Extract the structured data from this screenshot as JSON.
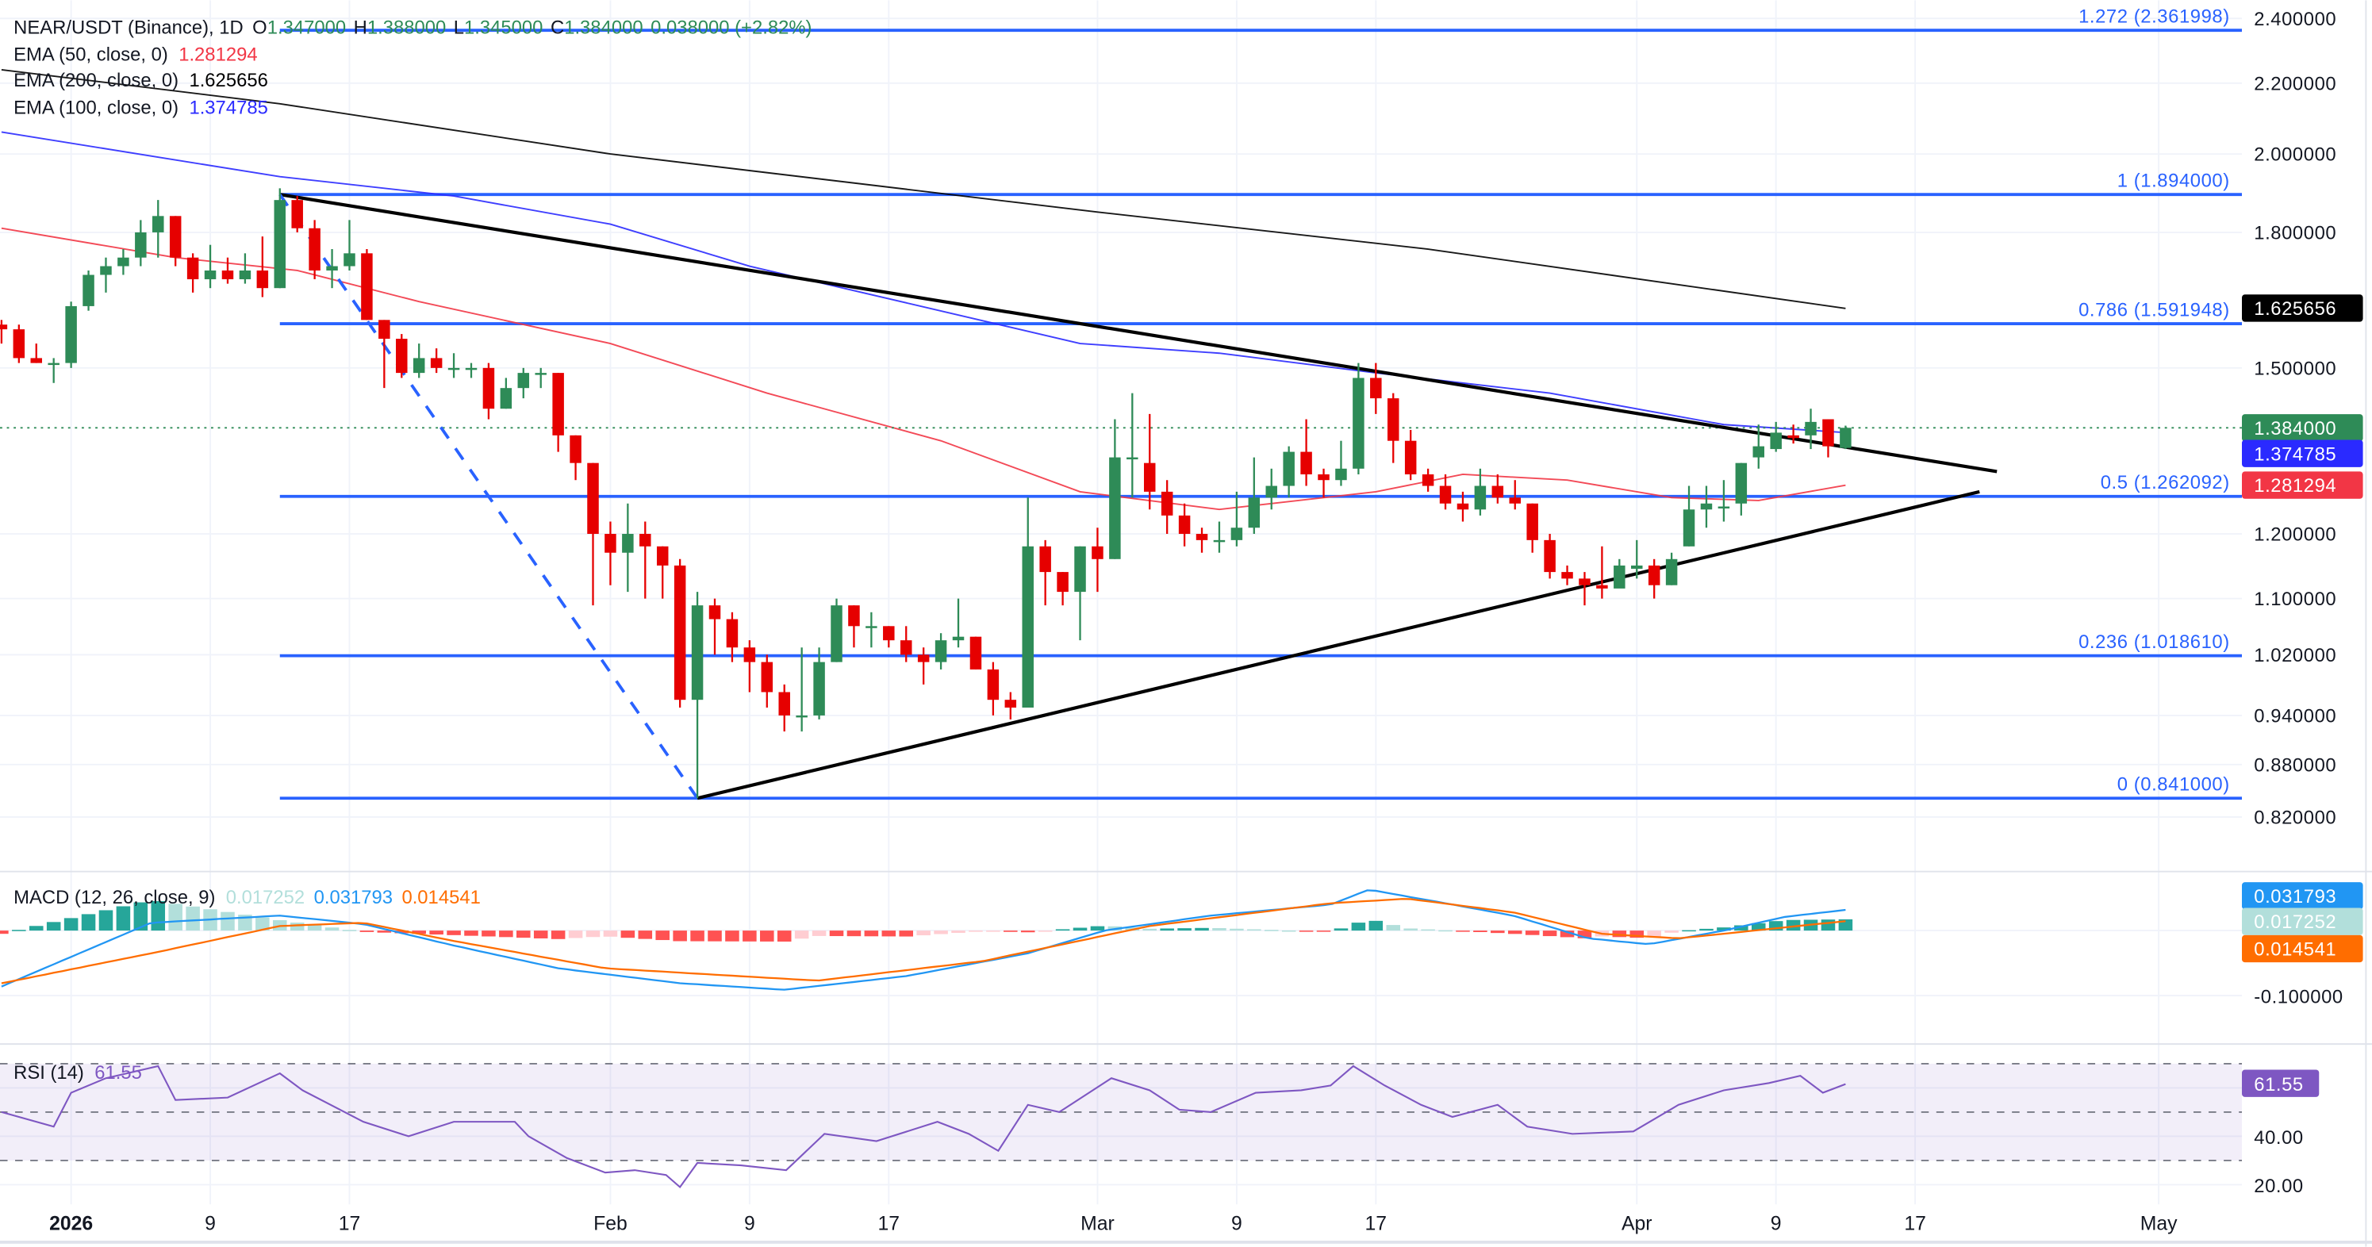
{
  "header": {
    "symbol": "NEAR/USDT (Binance), 1D",
    "o_label": "O",
    "o_value": "1.347000",
    "h_label": "H",
    "h_value": "1.388000",
    "l_label": "L",
    "l_value": "1.345000",
    "c_label": "C",
    "c_value": "1.384000",
    "change": "0.038000 (+2.82%)",
    "ema50_label": "EMA (50, close, 0)",
    "ema50_value": "1.281294",
    "ema200_label": "EMA (200, close, 0)",
    "ema200_value": "1.625656",
    "ema100_label": "EMA (100, close, 0)",
    "ema100_value": "1.374785"
  },
  "colors": {
    "up": "#2e8b57",
    "down": "#e60000",
    "fib": "#2962ff",
    "ema50": "#f23645",
    "ema100": "#2a2aff",
    "ema200": "#000000",
    "macd": "#2196f3",
    "signal": "#ff6d00",
    "rsi": "#7e57c2",
    "hist_up_strong": "#26a69a",
    "hist_up_weak": "#b2dfdb",
    "hist_down_strong": "#ff5252",
    "hist_down_weak": "#ffcdd2"
  },
  "price_axis": {
    "ticks": [
      "2.400000",
      "2.200000",
      "2.000000",
      "1.800000",
      "1.500000",
      "1.200000",
      "1.100000",
      "1.020000",
      "0.940000",
      "0.880000",
      "0.820000"
    ],
    "badges": [
      {
        "value": "1.625656",
        "color": "#000000",
        "text_color": "#ffffff"
      },
      {
        "value": "1.384000",
        "color": "#2e8b57",
        "text_color": "#ffffff"
      },
      {
        "value": "1.374785",
        "color": "#2a2aff",
        "text_color": "#ffffff"
      },
      {
        "value": "1.281294",
        "color": "#f23645",
        "text_color": "#ffffff"
      }
    ]
  },
  "fib_levels": [
    {
      "label": "1.272 (2.361998)",
      "price": 2.361998
    },
    {
      "label": "1 (1.894000)",
      "price": 1.894
    },
    {
      "label": "0.786 (1.591948)",
      "price": 1.591948
    },
    {
      "label": "0.5 (1.262092)",
      "price": 1.262092
    },
    {
      "label": "0.236 (1.018610)",
      "price": 1.01861
    },
    {
      "label": "0 (0.841000)",
      "price": 0.841
    }
  ],
  "macd": {
    "label": "MACD (12, 26, close, 9)",
    "hist_value": "0.017252",
    "macd_value": "0.031793",
    "signal_value": "0.014541",
    "axis_tick": "-0.100000",
    "badges": [
      {
        "value": "0.031793",
        "color": "#2196f3",
        "text_color": "#ffffff"
      },
      {
        "value": "0.017252",
        "color": "#b2dfdb",
        "text_color": "#000000"
      },
      {
        "value": "0.014541",
        "color": "#ff6d00",
        "text_color": "#ffffff"
      }
    ]
  },
  "rsi": {
    "label": "RSI (14)",
    "value": "61.55",
    "ticks": [
      "40.00",
      "20.00"
    ]
  },
  "x_axis": {
    "ticks": [
      {
        "label": "2026",
        "day": 0,
        "bold": true
      },
      {
        "label": "9",
        "day": 8
      },
      {
        "label": "17",
        "day": 16
      },
      {
        "label": "Feb",
        "day": 31
      },
      {
        "label": "9",
        "day": 39
      },
      {
        "label": "17",
        "day": 47
      },
      {
        "label": "Mar",
        "day": 59
      },
      {
        "label": "9",
        "day": 67
      },
      {
        "label": "17",
        "day": 75
      },
      {
        "label": "Apr",
        "day": 90
      },
      {
        "label": "9",
        "day": 98
      },
      {
        "label": "17",
        "day": 106
      },
      {
        "label": "May",
        "day": 120
      }
    ]
  },
  "chart_data": {
    "type": "candlestick",
    "title": "NEAR/USDT (Binance), 1D",
    "scale": "log",
    "ylim": [
      0.8,
      2.42
    ],
    "x_unit": "days since 2026-01-01",
    "start_day": -4,
    "ohlc": [
      [
        1.59,
        1.6,
        1.55,
        1.58
      ],
      [
        1.58,
        1.59,
        1.51,
        1.52
      ],
      [
        1.52,
        1.55,
        1.51,
        1.51
      ],
      [
        1.51,
        1.52,
        1.47,
        1.51
      ],
      [
        1.51,
        1.64,
        1.5,
        1.63
      ],
      [
        1.63,
        1.71,
        1.62,
        1.7
      ],
      [
        1.7,
        1.74,
        1.66,
        1.72
      ],
      [
        1.72,
        1.76,
        1.7,
        1.74
      ],
      [
        1.74,
        1.83,
        1.72,
        1.8
      ],
      [
        1.8,
        1.88,
        1.74,
        1.84
      ],
      [
        1.84,
        1.84,
        1.72,
        1.74
      ],
      [
        1.74,
        1.75,
        1.66,
        1.69
      ],
      [
        1.69,
        1.77,
        1.67,
        1.71
      ],
      [
        1.71,
        1.74,
        1.68,
        1.69
      ],
      [
        1.69,
        1.75,
        1.68,
        1.71
      ],
      [
        1.71,
        1.79,
        1.65,
        1.67
      ],
      [
        1.67,
        1.91,
        1.67,
        1.88
      ],
      [
        1.88,
        1.89,
        1.8,
        1.81
      ],
      [
        1.81,
        1.83,
        1.69,
        1.71
      ],
      [
        1.71,
        1.76,
        1.67,
        1.72
      ],
      [
        1.72,
        1.83,
        1.71,
        1.75
      ],
      [
        1.75,
        1.76,
        1.6,
        1.6
      ],
      [
        1.6,
        1.6,
        1.46,
        1.56
      ],
      [
        1.56,
        1.57,
        1.48,
        1.49
      ],
      [
        1.49,
        1.55,
        1.48,
        1.52
      ],
      [
        1.52,
        1.54,
        1.49,
        1.5
      ],
      [
        1.5,
        1.53,
        1.48,
        1.5
      ],
      [
        1.5,
        1.51,
        1.48,
        1.5
      ],
      [
        1.5,
        1.51,
        1.4,
        1.42
      ],
      [
        1.42,
        1.48,
        1.42,
        1.46
      ],
      [
        1.46,
        1.5,
        1.44,
        1.49
      ],
      [
        1.49,
        1.5,
        1.46,
        1.49
      ],
      [
        1.49,
        1.49,
        1.34,
        1.37
      ],
      [
        1.37,
        1.37,
        1.29,
        1.32
      ],
      [
        1.32,
        1.32,
        1.09,
        1.2
      ],
      [
        1.2,
        1.22,
        1.12,
        1.17
      ],
      [
        1.17,
        1.25,
        1.11,
        1.2
      ],
      [
        1.2,
        1.22,
        1.1,
        1.18
      ],
      [
        1.18,
        1.18,
        1.1,
        1.15
      ],
      [
        1.15,
        1.16,
        0.95,
        0.96
      ],
      [
        0.96,
        1.11,
        0.841,
        1.09
      ],
      [
        1.09,
        1.1,
        1.02,
        1.07
      ],
      [
        1.07,
        1.08,
        1.01,
        1.03
      ],
      [
        1.03,
        1.04,
        0.97,
        1.01
      ],
      [
        1.01,
        1.02,
        0.95,
        0.97
      ],
      [
        0.97,
        0.98,
        0.92,
        0.94
      ],
      [
        0.94,
        1.03,
        0.92,
        0.94
      ],
      [
        0.94,
        1.03,
        0.935,
        1.01
      ],
      [
        1.01,
        1.1,
        1.01,
        1.09
      ],
      [
        1.09,
        1.09,
        1.03,
        1.06
      ],
      [
        1.06,
        1.08,
        1.03,
        1.06
      ],
      [
        1.06,
        1.06,
        1.03,
        1.04
      ],
      [
        1.04,
        1.06,
        1.01,
        1.02
      ],
      [
        1.02,
        1.03,
        0.98,
        1.01
      ],
      [
        1.01,
        1.05,
        1.0,
        1.04
      ],
      [
        1.04,
        1.1,
        1.03,
        1.045
      ],
      [
        1.045,
        1.045,
        1.0,
        1.0
      ],
      [
        1.0,
        1.01,
        0.94,
        0.96
      ],
      [
        0.96,
        0.97,
        0.935,
        0.95
      ],
      [
        0.95,
        1.26,
        0.95,
        1.18
      ],
      [
        1.18,
        1.19,
        1.09,
        1.14
      ],
      [
        1.14,
        1.14,
        1.09,
        1.11
      ],
      [
        1.11,
        1.18,
        1.04,
        1.18
      ],
      [
        1.18,
        1.21,
        1.11,
        1.16
      ],
      [
        1.16,
        1.4,
        1.16,
        1.33
      ],
      [
        1.33,
        1.45,
        1.26,
        1.33
      ],
      [
        1.32,
        1.41,
        1.24,
        1.27
      ],
      [
        1.27,
        1.29,
        1.2,
        1.23
      ],
      [
        1.23,
        1.25,
        1.18,
        1.2
      ],
      [
        1.2,
        1.21,
        1.17,
        1.19
      ],
      [
        1.19,
        1.22,
        1.17,
        1.19
      ],
      [
        1.19,
        1.27,
        1.18,
        1.21
      ],
      [
        1.21,
        1.33,
        1.2,
        1.26
      ],
      [
        1.26,
        1.31,
        1.24,
        1.28
      ],
      [
        1.28,
        1.35,
        1.26,
        1.34
      ],
      [
        1.34,
        1.4,
        1.28,
        1.3
      ],
      [
        1.3,
        1.31,
        1.26,
        1.29
      ],
      [
        1.29,
        1.36,
        1.28,
        1.31
      ],
      [
        1.31,
        1.51,
        1.3,
        1.48
      ],
      [
        1.48,
        1.51,
        1.41,
        1.44
      ],
      [
        1.44,
        1.45,
        1.32,
        1.36
      ],
      [
        1.36,
        1.38,
        1.29,
        1.3
      ],
      [
        1.3,
        1.31,
        1.27,
        1.28
      ],
      [
        1.28,
        1.3,
        1.24,
        1.25
      ],
      [
        1.25,
        1.27,
        1.22,
        1.24
      ],
      [
        1.24,
        1.31,
        1.23,
        1.28
      ],
      [
        1.28,
        1.3,
        1.25,
        1.26
      ],
      [
        1.26,
        1.29,
        1.24,
        1.25
      ],
      [
        1.25,
        1.25,
        1.17,
        1.19
      ],
      [
        1.19,
        1.2,
        1.13,
        1.14
      ],
      [
        1.14,
        1.15,
        1.12,
        1.13
      ],
      [
        1.13,
        1.14,
        1.09,
        1.12
      ],
      [
        1.12,
        1.18,
        1.1,
        1.115
      ],
      [
        1.115,
        1.16,
        1.12,
        1.15
      ],
      [
        1.145,
        1.19,
        1.13,
        1.15
      ],
      [
        1.15,
        1.16,
        1.1,
        1.12
      ],
      [
        1.12,
        1.17,
        1.12,
        1.16
      ],
      [
        1.18,
        1.28,
        1.18,
        1.24
      ],
      [
        1.24,
        1.28,
        1.21,
        1.25
      ],
      [
        1.245,
        1.29,
        1.22,
        1.245
      ],
      [
        1.25,
        1.32,
        1.23,
        1.32
      ],
      [
        1.33,
        1.39,
        1.31,
        1.35
      ],
      [
        1.345,
        1.395,
        1.34,
        1.375
      ],
      [
        1.37,
        1.39,
        1.355,
        1.365
      ],
      [
        1.37,
        1.42,
        1.345,
        1.395
      ],
      [
        1.4,
        1.4,
        1.33,
        1.35
      ],
      [
        1.347,
        1.388,
        1.345,
        1.384
      ]
    ],
    "last_price": 1.384,
    "ema50": [
      [
        -4,
        1.81
      ],
      [
        6,
        1.74
      ],
      [
        13,
        1.71
      ],
      [
        20,
        1.64
      ],
      [
        31,
        1.55
      ],
      [
        40,
        1.45
      ],
      [
        50,
        1.36
      ],
      [
        58,
        1.27
      ],
      [
        66,
        1.24
      ],
      [
        75,
        1.27
      ],
      [
        80,
        1.3
      ],
      [
        86,
        1.29
      ],
      [
        92,
        1.26
      ],
      [
        97,
        1.255
      ],
      [
        102,
        1.281
      ]
    ],
    "ema100": [
      [
        -4,
        2.06
      ],
      [
        12,
        1.94
      ],
      [
        22,
        1.89
      ],
      [
        31,
        1.82
      ],
      [
        39,
        1.72
      ],
      [
        58,
        1.55
      ],
      [
        66,
        1.53
      ],
      [
        75,
        1.49
      ],
      [
        85,
        1.45
      ],
      [
        95,
        1.39
      ],
      [
        102,
        1.375
      ]
    ],
    "ema200": [
      [
        -4,
        2.24
      ],
      [
        12,
        2.14
      ],
      [
        31,
        2.0
      ],
      [
        59,
        1.85
      ],
      [
        78,
        1.76
      ],
      [
        102,
        1.625
      ]
    ],
    "trendlines": [
      {
        "name": "upper-trendline",
        "from": [
          12,
          1.894
        ],
        "to": [
          110.7,
          1.305
        ],
        "style": "solid"
      },
      {
        "name": "lower-trendline",
        "from": [
          36,
          0.841
        ],
        "to": [
          109.7,
          1.27
        ],
        "style": "solid"
      },
      {
        "name": "fib-anchor-line",
        "from": [
          12,
          1.894
        ],
        "to": [
          36,
          0.841
        ],
        "style": "dashed"
      }
    ],
    "fib_start_day": 12,
    "macd_line": [
      [
        -4,
        -0.086
      ],
      [
        4.6,
        0.012
      ],
      [
        12,
        0.023
      ],
      [
        16.8,
        0.01
      ],
      [
        22,
        -0.023
      ],
      [
        28,
        -0.058
      ],
      [
        35,
        -0.081
      ],
      [
        41,
        -0.091
      ],
      [
        48,
        -0.07
      ],
      [
        55,
        -0.035
      ],
      [
        59.4,
        0.0
      ],
      [
        65.5,
        0.023
      ],
      [
        72.4,
        0.04
      ],
      [
        74.6,
        0.063
      ],
      [
        79.4,
        0.04
      ],
      [
        82.9,
        0.023
      ],
      [
        87.2,
        -0.012
      ],
      [
        90.7,
        -0.021
      ],
      [
        95,
        0.0
      ],
      [
        98.5,
        0.021
      ],
      [
        102,
        0.0318
      ]
    ],
    "signal_line": [
      [
        -4,
        -0.081
      ],
      [
        4.6,
        -0.035
      ],
      [
        12,
        0.007
      ],
      [
        16.8,
        0.012
      ],
      [
        22,
        -0.016
      ],
      [
        30.7,
        -0.058
      ],
      [
        42.9,
        -0.077
      ],
      [
        52.4,
        -0.047
      ],
      [
        62,
        0.007
      ],
      [
        72.4,
        0.042
      ],
      [
        76.8,
        0.049
      ],
      [
        82.9,
        0.028
      ],
      [
        88,
        -0.005
      ],
      [
        92.4,
        -0.012
      ],
      [
        102,
        0.0145
      ]
    ],
    "macd_ylim": [
      -0.125,
      0.07
    ],
    "rsi_line": [
      [
        -4,
        50
      ],
      [
        -1,
        44
      ],
      [
        0,
        58
      ],
      [
        2,
        64
      ],
      [
        5,
        69
      ],
      [
        6,
        55
      ],
      [
        9,
        56
      ],
      [
        12,
        66
      ],
      [
        13.3,
        59
      ],
      [
        16.8,
        46
      ],
      [
        19.4,
        40
      ],
      [
        22,
        46
      ],
      [
        25.5,
        46
      ],
      [
        26.3,
        40
      ],
      [
        28.5,
        31
      ],
      [
        30.7,
        25
      ],
      [
        32.4,
        26
      ],
      [
        34.2,
        24
      ],
      [
        35,
        19
      ],
      [
        36,
        29
      ],
      [
        38.5,
        28
      ],
      [
        41.1,
        26
      ],
      [
        43.3,
        41
      ],
      [
        46.3,
        38
      ],
      [
        49.8,
        46
      ],
      [
        51.6,
        41
      ],
      [
        53.3,
        34
      ],
      [
        55,
        53
      ],
      [
        56.8,
        50
      ],
      [
        59.8,
        64
      ],
      [
        62,
        59
      ],
      [
        63.7,
        51
      ],
      [
        65.5,
        50
      ],
      [
        68.1,
        58
      ],
      [
        70.7,
        59
      ],
      [
        72.4,
        61
      ],
      [
        73.7,
        69
      ],
      [
        75.5,
        61
      ],
      [
        77.6,
        53
      ],
      [
        79.4,
        48
      ],
      [
        82,
        53
      ],
      [
        83.7,
        44
      ],
      [
        86.3,
        41
      ],
      [
        89.8,
        42
      ],
      [
        92.4,
        53
      ],
      [
        95,
        59
      ],
      [
        97.6,
        62
      ],
      [
        99.4,
        65
      ],
      [
        100.7,
        58
      ],
      [
        102,
        61.55
      ]
    ],
    "rsi_levels": [
      70,
      50,
      30
    ],
    "rsi_ylim": [
      14,
      76
    ]
  }
}
